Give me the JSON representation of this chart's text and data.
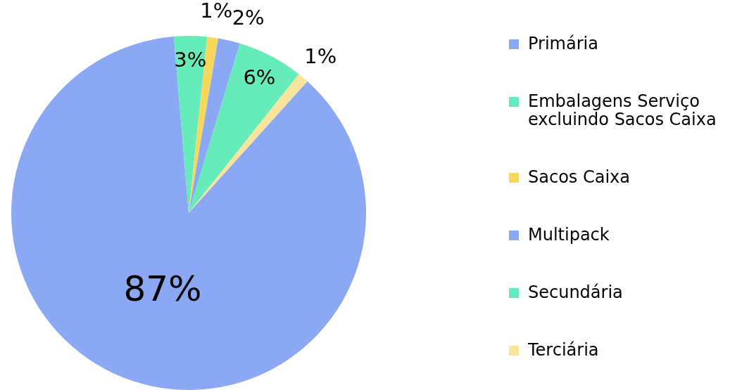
{
  "chart_data": {
    "type": "pie",
    "categories": [
      "Primária",
      "Embalagens Serviço excluindo Sacos Caixa",
      "Sacos Caixa",
      "Multipack",
      "Secundária",
      "Terciária"
    ],
    "values": [
      87,
      3,
      1,
      2,
      6,
      1
    ],
    "colors": [
      "#8aa8f4",
      "#66ecbb",
      "#f7d75c",
      "#8aa8f4",
      "#66ecbb",
      "#f8e49a"
    ],
    "value_labels": [
      "87%",
      "3%",
      "1%",
      "2%",
      "6%",
      "1%"
    ],
    "legend": "right"
  }
}
